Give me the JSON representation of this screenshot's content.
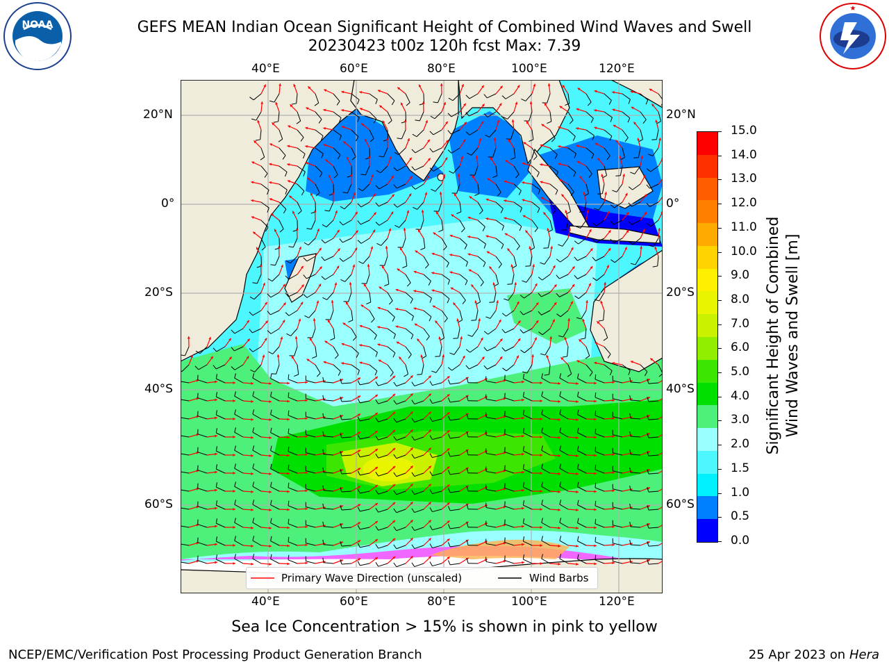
{
  "title": {
    "line1": "GEFS MEAN Indian Ocean Significant Height of Combined Wind Waves and Swell",
    "line2": "20230423 t00z 120h fcst   Max: 7.39"
  },
  "logos": {
    "left": {
      "text": "NOAA",
      "ring": "NATIONAL OCEANIC AND ATMOSPHERIC ADMINISTRATION · U.S. DEPARTMENT OF COMMERCE"
    },
    "right": {
      "ring": "NATIONAL WEATHER SERVICE"
    }
  },
  "map": {
    "lon_labels": [
      "40°E",
      "60°E",
      "80°E",
      "100°E",
      "120°E"
    ],
    "lat_labels": [
      "20°N",
      "0°",
      "20°S",
      "40°S",
      "60°S"
    ],
    "colors": {
      "ocean_default": "#00e5ff",
      "land": "#efecdc",
      "grid": "#b0b0b0",
      "arrow": "#ff0000",
      "barb": "#000000"
    }
  },
  "legend": {
    "wave_label": "Primary Wave Direction (unscaled)",
    "wind_label": "Wind Barbs"
  },
  "colorbar": {
    "label_line1": "Significant Height of Combined",
    "label_line2": "Wind Waves and Swell [m]",
    "ticks": [
      "15.0",
      "14.0",
      "13.0",
      "12.0",
      "11.0",
      "10.0",
      "9.0",
      "8.0",
      "7.0",
      "6.0",
      "5.0",
      "4.0",
      "3.0",
      "2.0",
      "1.5",
      "1.0",
      "0.5",
      "0.0"
    ],
    "colors": [
      "#ff0000",
      "#ff2f00",
      "#ff5c00",
      "#ff8000",
      "#ffaa00",
      "#ffd200",
      "#fff000",
      "#e8f400",
      "#caf200",
      "#92ee00",
      "#3ce600",
      "#00e000",
      "#4cf07a",
      "#9affff",
      "#4df7ff",
      "#00f0ff",
      "#0080ff",
      "#0000ff"
    ]
  },
  "caption": "Sea Ice Concentration > 15% is shown in pink to yellow",
  "footer": {
    "left": "NCEP/EMC/Verification Post Processing Product Generation Branch",
    "right_prefix": "25 Apr 2023 on ",
    "right_host": "Hera"
  }
}
